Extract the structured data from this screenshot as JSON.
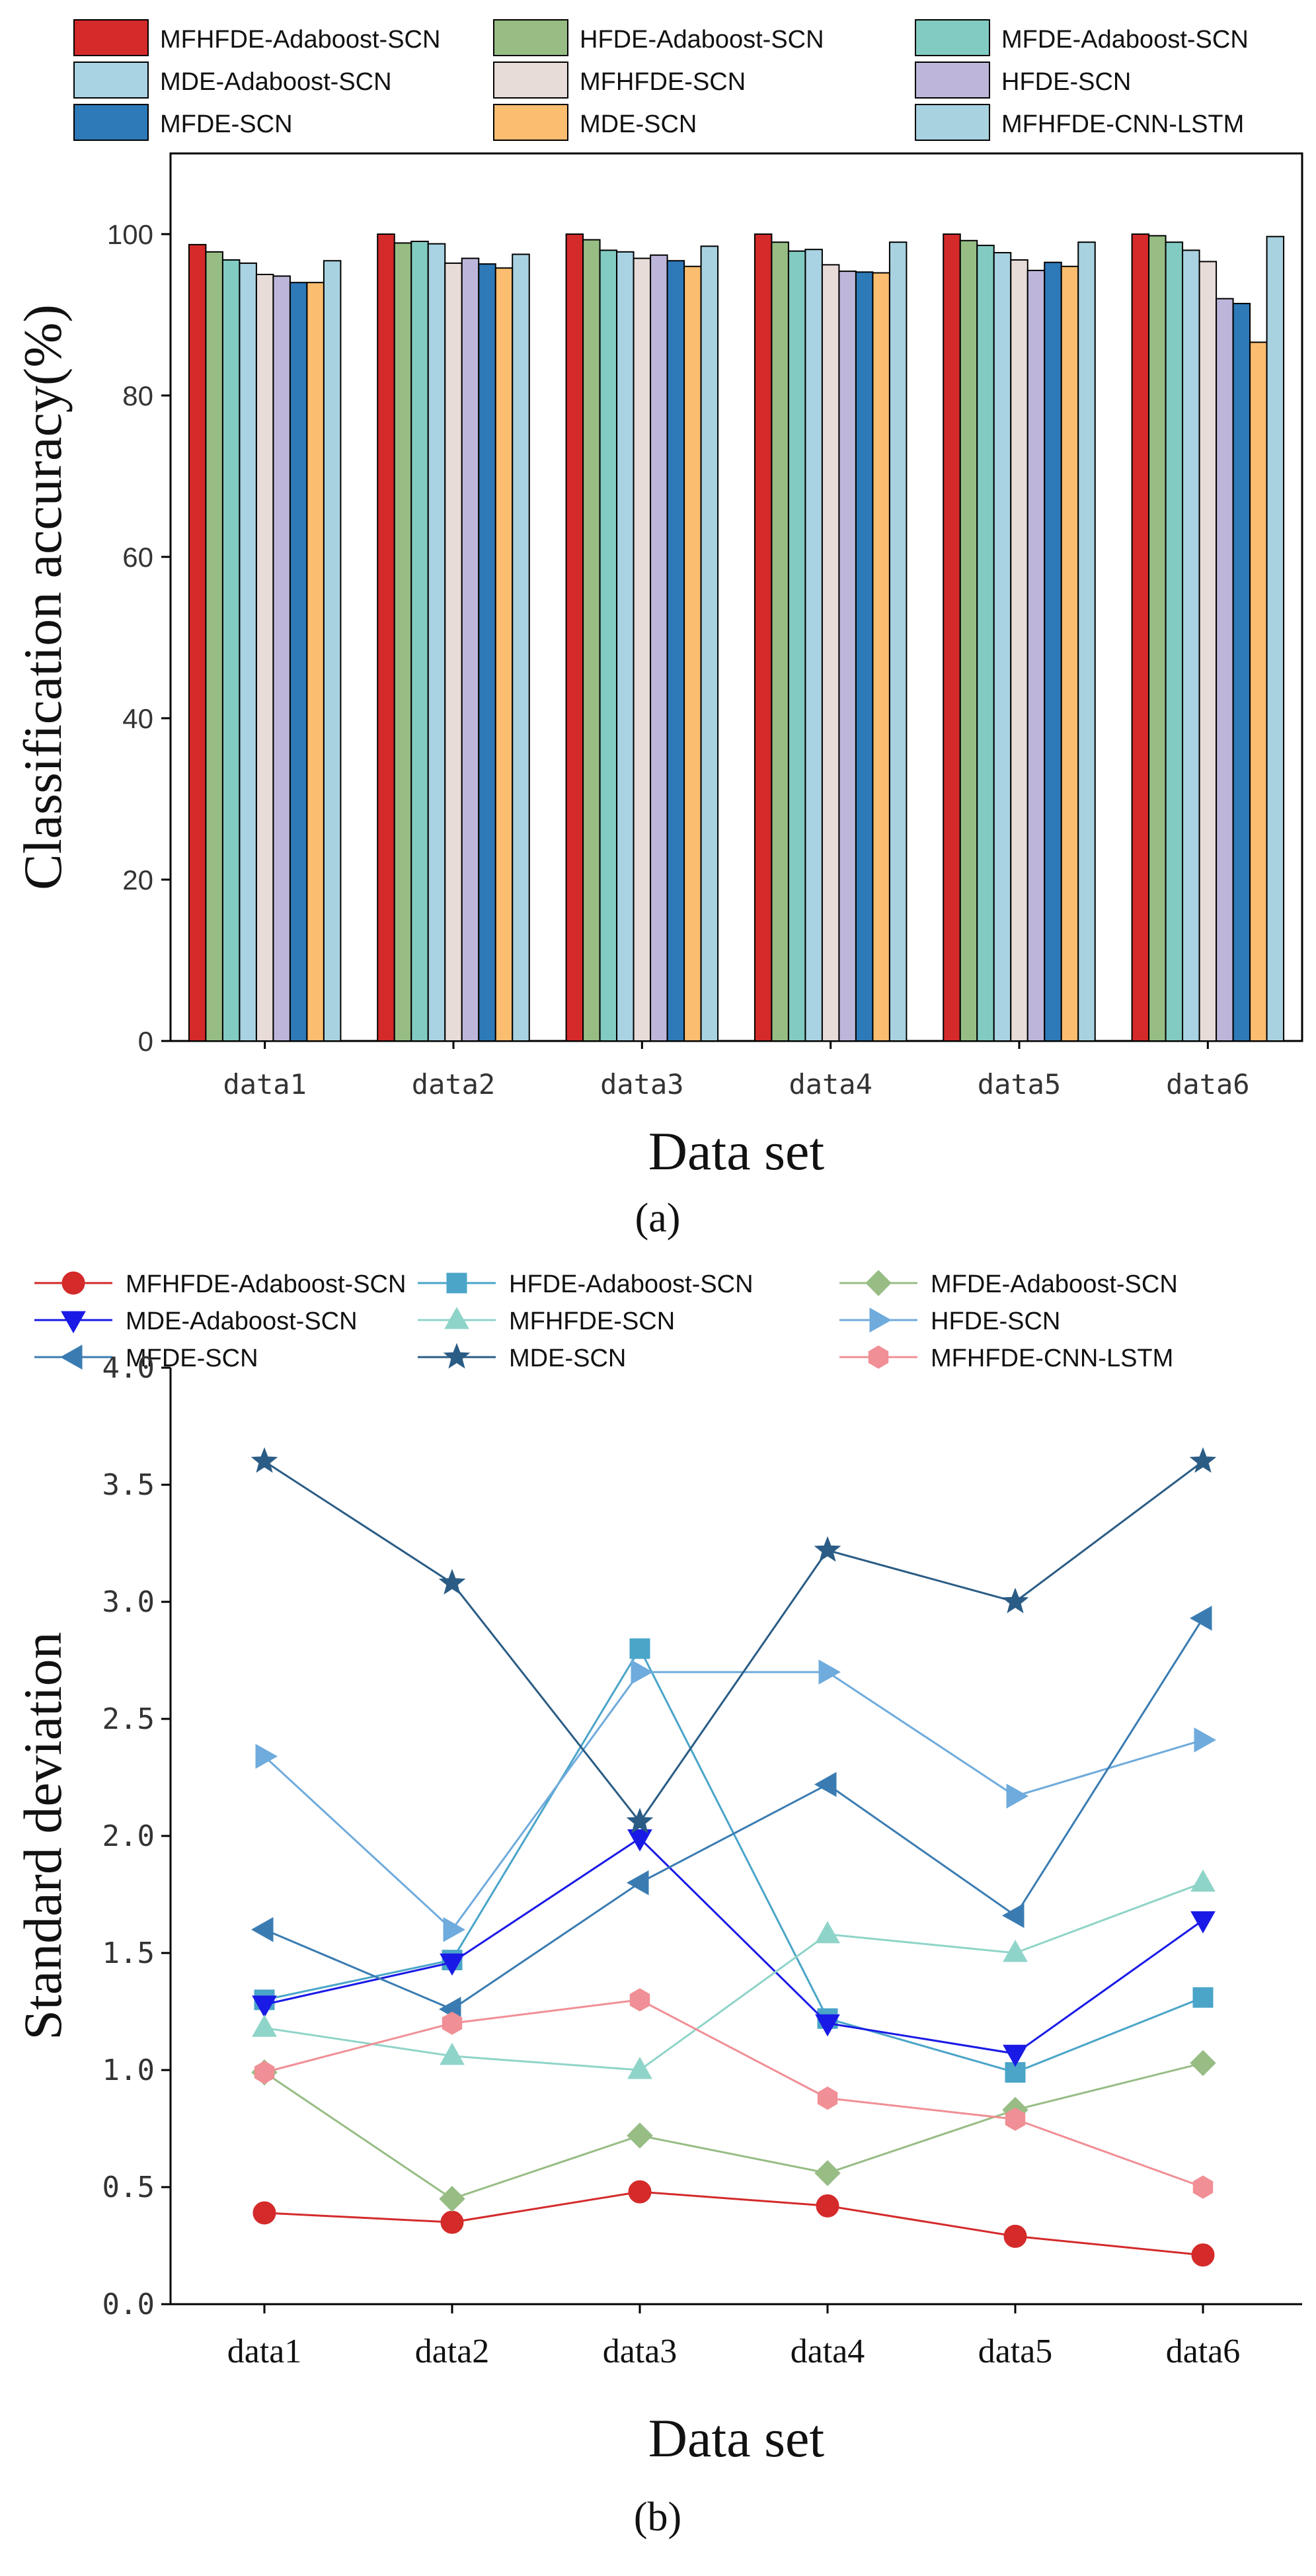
{
  "chart_data": [
    {
      "panel": "(a)",
      "type": "bar",
      "categories": [
        "data1",
        "data2",
        "data3",
        "data4",
        "data5",
        "data6"
      ],
      "xlabel": "Data set",
      "ylabel": "Classification accuracy(%)",
      "ylim": [
        0,
        110
      ],
      "yticks": [
        0,
        20,
        40,
        60,
        80,
        100
      ],
      "legend_position": "top",
      "series": [
        {
          "name": "MFHFDE-Adaboost-SCN",
          "color": "#d42a2a",
          "values": [
            98.7,
            100,
            100,
            100,
            100,
            100
          ]
        },
        {
          "name": "HFDE-Adaboost-SCN",
          "color": "#97bd85",
          "values": [
            97.8,
            98.9,
            99.3,
            99.0,
            99.2,
            99.8
          ]
        },
        {
          "name": "MFDE-Adaboost-SCN",
          "color": "#82cbc2",
          "values": [
            96.8,
            99.1,
            98.0,
            97.9,
            98.6,
            99.0
          ]
        },
        {
          "name": "MDE-Adaboost-SCN",
          "color": "#a9d3e2",
          "values": [
            96.4,
            98.8,
            97.8,
            98.1,
            97.7,
            98.0
          ]
        },
        {
          "name": "MFHFDE-SCN",
          "color": "#e8dcd8",
          "values": [
            95.0,
            96.4,
            97.0,
            96.2,
            96.8,
            96.6
          ]
        },
        {
          "name": "HFDE-SCN",
          "color": "#beb6da",
          "values": [
            94.8,
            97.0,
            97.4,
            95.4,
            95.5,
            92.0
          ]
        },
        {
          "name": "MFDE-SCN",
          "color": "#2e79b8",
          "values": [
            94.0,
            96.3,
            96.7,
            95.3,
            96.5,
            91.4
          ]
        },
        {
          "name": "MDE-SCN",
          "color": "#fbbd70",
          "values": [
            94.0,
            95.8,
            96.0,
            95.2,
            96.0,
            86.6
          ]
        },
        {
          "name": "MFHFDE-CNN-LSTM",
          "color": "#a8d2e0",
          "values": [
            96.7,
            97.5,
            98.5,
            99.0,
            99.0,
            99.7
          ]
        }
      ]
    },
    {
      "panel": "(b)",
      "type": "line",
      "categories": [
        "data1",
        "data2",
        "data3",
        "data4",
        "data5",
        "data6"
      ],
      "xlabel": "Data set",
      "ylabel": "Standard deviation",
      "ylim": [
        0,
        4
      ],
      "yticks": [
        "0.0",
        "0.5",
        "1.0",
        "1.5",
        "2.0",
        "2.5",
        "3.0",
        "3.5",
        "4.0"
      ],
      "legend_position": "top",
      "series": [
        {
          "name": "MFHFDE-Adaboost-SCN",
          "color": "#d42a2a",
          "marker": "circle",
          "values": [
            0.39,
            0.35,
            0.48,
            0.42,
            0.29,
            0.21
          ]
        },
        {
          "name": "HFDE-Adaboost-SCN",
          "color": "#4aa5c8",
          "marker": "square",
          "values": [
            1.3,
            1.47,
            2.8,
            1.22,
            0.99,
            1.31
          ]
        },
        {
          "name": "MFDE-Adaboost-SCN",
          "color": "#97bd85",
          "marker": "diamond",
          "values": [
            0.99,
            0.45,
            0.72,
            0.56,
            0.83,
            1.03
          ]
        },
        {
          "name": "MDE-Adaboost-SCN",
          "color": "#1a1ae6",
          "marker": "triangle-down",
          "values": [
            1.28,
            1.46,
            1.99,
            1.2,
            1.07,
            1.64
          ]
        },
        {
          "name": "MFHFDE-SCN",
          "color": "#8fd4c8",
          "marker": "triangle-up",
          "values": [
            1.18,
            1.06,
            1.0,
            1.58,
            1.5,
            1.8
          ]
        },
        {
          "name": "HFDE-SCN",
          "color": "#6fabdc",
          "marker": "triangle-right",
          "values": [
            2.34,
            1.6,
            2.7,
            2.7,
            2.17,
            2.41
          ]
        },
        {
          "name": "MFDE-SCN",
          "color": "#3a7cb2",
          "marker": "triangle-left",
          "values": [
            1.6,
            1.26,
            1.8,
            2.22,
            1.66,
            2.93
          ]
        },
        {
          "name": "MDE-SCN",
          "color": "#2a5c85",
          "marker": "star",
          "values": [
            3.6,
            3.08,
            2.06,
            3.22,
            3.0,
            3.6
          ]
        },
        {
          "name": "MFHFDE-CNN-LSTM",
          "color": "#f08f95",
          "marker": "hexagon",
          "values": [
            0.99,
            1.2,
            1.3,
            0.88,
            0.79,
            0.5
          ]
        }
      ]
    }
  ]
}
